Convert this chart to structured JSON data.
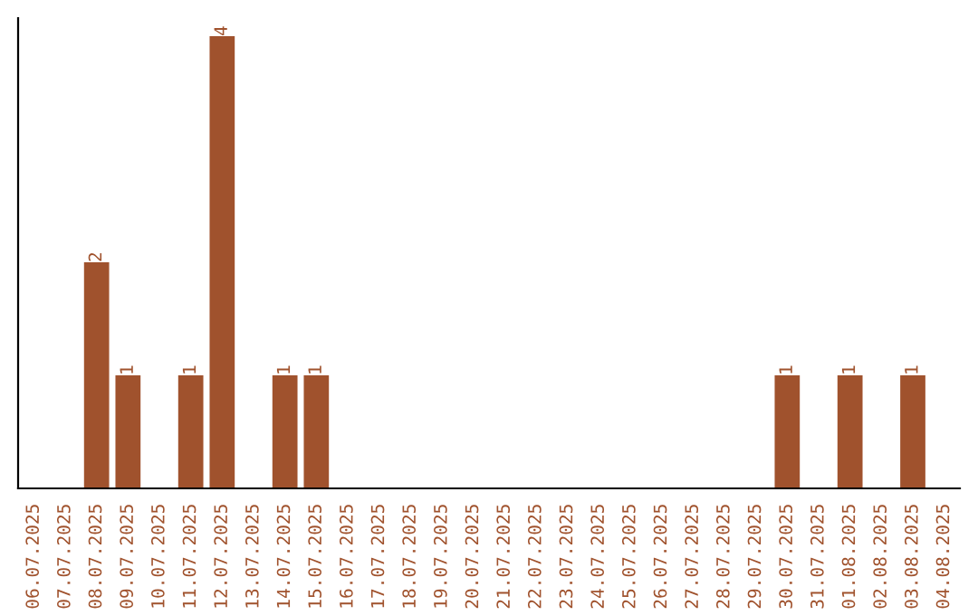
{
  "chart_data": {
    "type": "bar",
    "categories": [
      "06.07.2025",
      "07.07.2025",
      "08.07.2025",
      "09.07.2025",
      "10.07.2025",
      "11.07.2025",
      "12.07.2025",
      "13.07.2025",
      "14.07.2025",
      "15.07.2025",
      "16.07.2025",
      "17.07.2025",
      "18.07.2025",
      "19.07.2025",
      "20.07.2025",
      "21.07.2025",
      "22.07.2025",
      "23.07.2025",
      "24.07.2025",
      "25.07.2025",
      "26.07.2025",
      "27.07.2025",
      "28.07.2025",
      "29.07.2025",
      "30.07.2025",
      "31.07.2025",
      "01.08.2025",
      "02.08.2025",
      "03.08.2025",
      "04.08.2025"
    ],
    "values": [
      0,
      0,
      2,
      1,
      0,
      1,
      4,
      0,
      1,
      1,
      0,
      0,
      0,
      0,
      0,
      0,
      0,
      0,
      0,
      0,
      0,
      0,
      0,
      0,
      1,
      0,
      1,
      0,
      1,
      0
    ],
    "value_labels": [
      null,
      null,
      "2",
      "1",
      null,
      "1",
      "4",
      null,
      "1",
      "1",
      null,
      null,
      null,
      null,
      null,
      null,
      null,
      null,
      null,
      null,
      null,
      null,
      null,
      null,
      "1",
      null,
      "1",
      null,
      "1",
      null
    ],
    "color": "#a0522d",
    "ylim": [
      0,
      4.16
    ],
    "tick_labels": "x",
    "grid": false,
    "legend": false
  }
}
